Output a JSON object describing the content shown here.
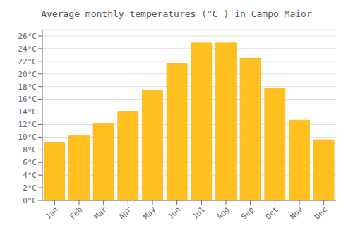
{
  "chart_data": {
    "type": "bar",
    "title": "Average monthly temperatures (°C ) in Campo Maior",
    "categories": [
      "Jan",
      "Feb",
      "Mar",
      "Apr",
      "May",
      "Jun",
      "Jul",
      "Aug",
      "Sep",
      "Oct",
      "Nov",
      "Dec"
    ],
    "values": [
      9.2,
      10.2,
      12.1,
      14.1,
      17.4,
      21.7,
      24.9,
      24.9,
      22.5,
      17.7,
      12.7,
      9.6
    ],
    "color": "#FFC020",
    "ylim": [
      0,
      27
    ],
    "yticks": [
      {
        "value": 0,
        "label": "0°C"
      },
      {
        "value": 2,
        "label": "2°C"
      },
      {
        "value": 4,
        "label": "4°C"
      },
      {
        "value": 6,
        "label": "6°C"
      },
      {
        "value": 8,
        "label": "8°C"
      },
      {
        "value": 10,
        "label": "10°C"
      },
      {
        "value": 12,
        "label": "12°C"
      },
      {
        "value": 14,
        "label": "14°C"
      },
      {
        "value": 16,
        "label": "16°C"
      },
      {
        "value": 18,
        "label": "18°C"
      },
      {
        "value": 20,
        "label": "20°C"
      },
      {
        "value": 22,
        "label": "22°C"
      },
      {
        "value": 24,
        "label": "24°C"
      },
      {
        "value": 26,
        "label": "26°C"
      }
    ],
    "grid": true
  }
}
